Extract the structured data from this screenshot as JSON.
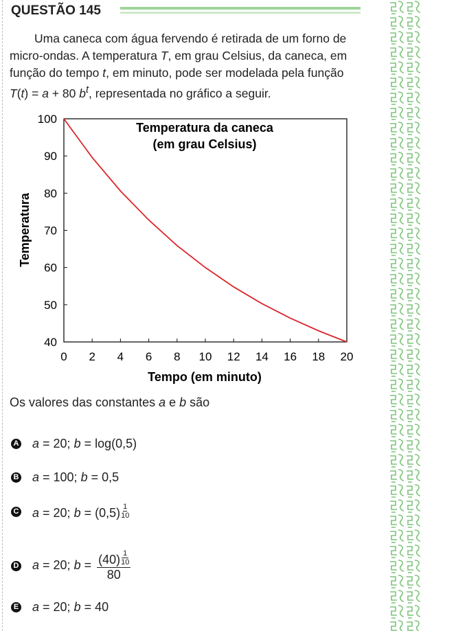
{
  "header": {
    "title": "QUESTÃO 145"
  },
  "intro": [
    "Uma caneca com água fervendo é retirada de um forno de micro-ondas. A temperatura ",
    "T",
    ", em grau Celsius, da caneca, em função do tempo ",
    "t",
    ", em minuto, pode ser modelada pela função ",
    "T",
    "(",
    "t",
    ") = ",
    "a",
    " + 80 ",
    "b",
    "t",
    ", representada no gráfico a seguir."
  ],
  "chart_data": {
    "type": "line",
    "title": [
      "Temperatura da caneca",
      "(em grau Celsius)"
    ],
    "x_label": "Tempo (em minuto)",
    "y_label": "Temperatura",
    "x": [
      0,
      2,
      4,
      6,
      8,
      10,
      12,
      14,
      16,
      18,
      20
    ],
    "series": [
      {
        "name": "T(t)",
        "color": "#d9262b",
        "values": [
          100,
          89.6,
          80.6,
          72.8,
          65.9,
          60,
          54.8,
          50.3,
          46.4,
          43,
          40
        ]
      }
    ],
    "xlim": [
      0,
      20
    ],
    "ylim": [
      40,
      100
    ],
    "xticks": [
      0,
      2,
      4,
      6,
      8,
      10,
      12,
      14,
      16,
      18,
      20
    ],
    "yticks": [
      40,
      50,
      60,
      70,
      80,
      90,
      100
    ]
  },
  "stem": [
    "Os valores das constantes ",
    "a",
    " e ",
    "b",
    " são"
  ],
  "options": [
    {
      "letter": "A",
      "text": [
        "a",
        " = 20; ",
        "b",
        " = log(0,5)"
      ]
    },
    {
      "letter": "B",
      "text": [
        "a",
        " = 100; ",
        "b",
        " = 0,5"
      ]
    },
    {
      "letter": "C",
      "text": [
        "a",
        " = 20; ",
        "b",
        " = (0,5)"
      ],
      "exponent": [
        "1",
        "10"
      ]
    },
    {
      "letter": "D",
      "text": [
        "a",
        " = 20; ",
        "b",
        " = "
      ],
      "numerator": "(40)",
      "exponent": [
        "1",
        "10"
      ],
      "denominator": "80"
    },
    {
      "letter": "E",
      "text": [
        "a",
        " = 20; ",
        "b",
        " = 40"
      ]
    }
  ]
}
